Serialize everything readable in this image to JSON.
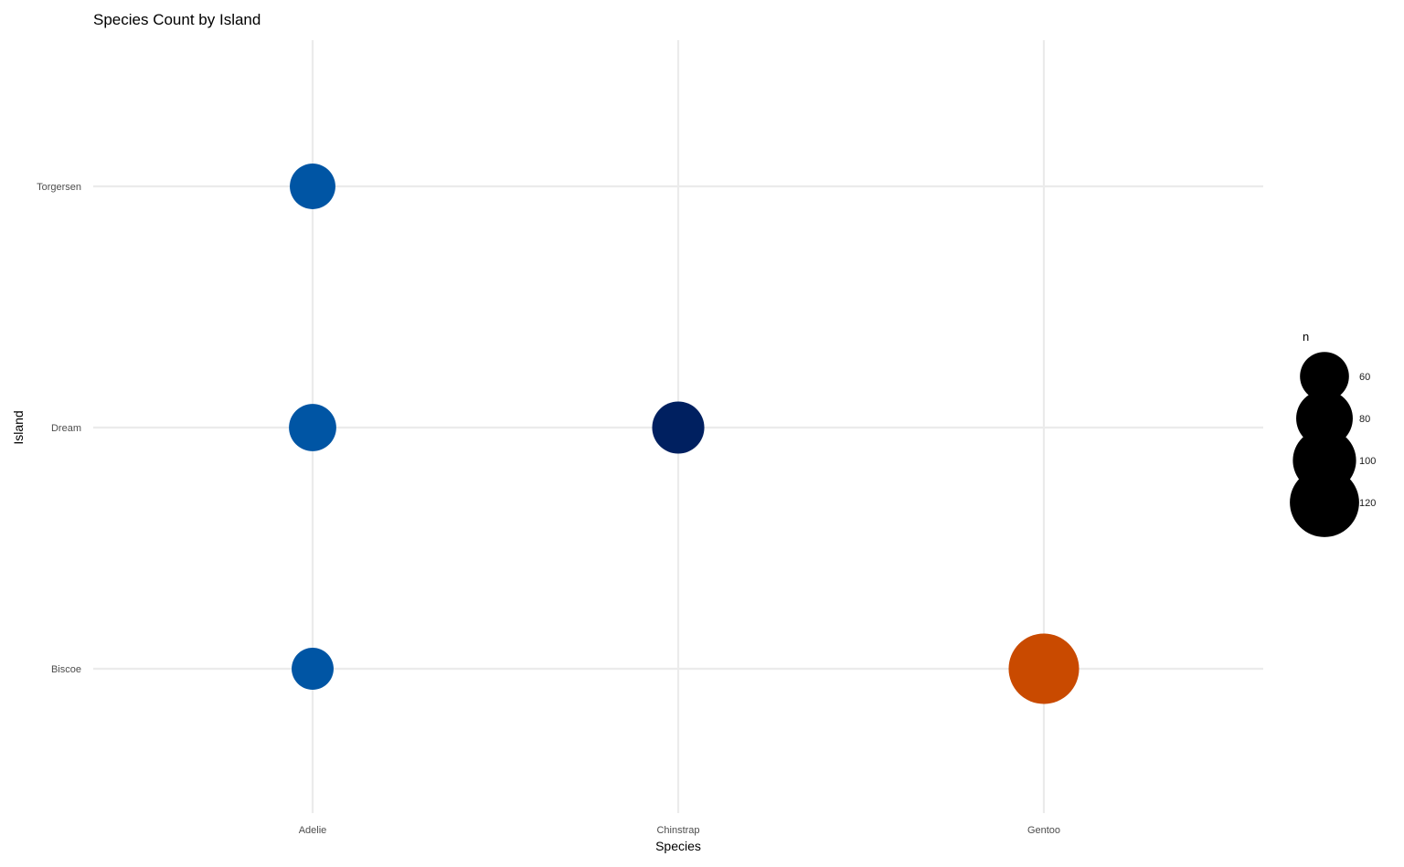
{
  "chart_data": {
    "type": "scatter",
    "title": "Species Count by Island",
    "xlabel": "Species",
    "ylabel": "Island",
    "x_categories": [
      "Adelie",
      "Chinstrap",
      "Gentoo"
    ],
    "y_categories": [
      "Biscoe",
      "Dream",
      "Torgersen"
    ],
    "points": [
      {
        "species": "Adelie",
        "island": "Biscoe",
        "n": 44,
        "color": "#0055a4"
      },
      {
        "species": "Adelie",
        "island": "Dream",
        "n": 56,
        "color": "#0055a4"
      },
      {
        "species": "Adelie",
        "island": "Torgersen",
        "n": 52,
        "color": "#0055a4"
      },
      {
        "species": "Chinstrap",
        "island": "Dream",
        "n": 68,
        "color": "#002060"
      },
      {
        "species": "Gentoo",
        "island": "Biscoe",
        "n": 124,
        "color": "#c94a00"
      }
    ],
    "legend": {
      "title": "n",
      "position": "right",
      "entries": [
        {
          "label": "60",
          "value": 60
        },
        {
          "label": "80",
          "value": 80
        },
        {
          "label": "100",
          "value": 100
        },
        {
          "label": "120",
          "value": 120
        }
      ],
      "color": "#000000"
    },
    "grid": true
  }
}
